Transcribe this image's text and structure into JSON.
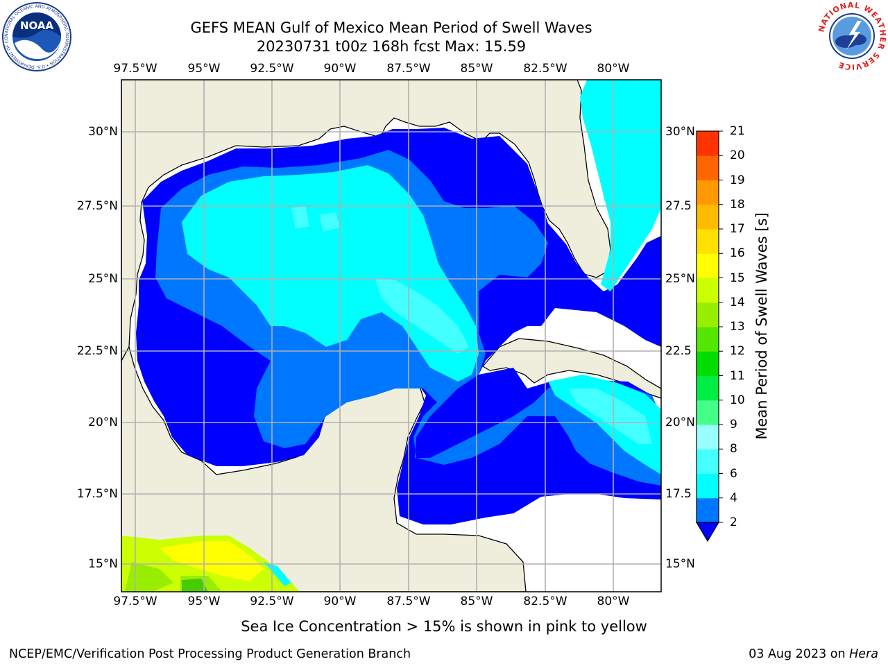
{
  "title": {
    "line1": "GEFS MEAN Gulf of Mexico Mean Period of Swell Waves",
    "line2": "20230731 t00z 168h fcst   Max: 15.59"
  },
  "map": {
    "lon_ticks": [
      "97.5°W",
      "95°W",
      "92.5°W",
      "90°W",
      "87.5°W",
      "85°W",
      "82.5°W",
      "80°W"
    ],
    "lat_ticks_left": [
      "30°N",
      "27.5°N",
      "25°N",
      "22.5°N",
      "20°N",
      "17.5°N",
      "15°N"
    ],
    "lat_ticks_right": [
      "30°N",
      "27.5",
      "25°N",
      "22.5",
      "20°N",
      "17.5",
      "15°N"
    ],
    "land_color": "#efeedd",
    "water_color": "#ffffff"
  },
  "colorbar": {
    "label": "Mean Period of Swell Waves [s]",
    "ticks": [
      "2",
      "4",
      "6",
      "8",
      "9",
      "10",
      "11",
      "12",
      "13",
      "14",
      "15",
      "16",
      "17",
      "18",
      "19",
      "20",
      "21"
    ],
    "colors": [
      "#0000ff",
      "#0077ff",
      "#00ffff",
      "#44ffff",
      "#99ffff",
      "#44ff88",
      "#00ee44",
      "#00dd00",
      "#55e600",
      "#99ee00",
      "#ccff00",
      "#ffff00",
      "#ffe000",
      "#ffbb00",
      "#ff9900",
      "#ff6600",
      "#ff3300",
      "#ff0000"
    ]
  },
  "note": "Sea Ice Concentration > 15% is shown in pink to yellow",
  "footer": {
    "left": "NCEP/EMC/Verification Post Processing Product Generation Branch",
    "date": "03 Aug 2023 on ",
    "machine": "Hera"
  },
  "logos": {
    "noaa": "NOAA",
    "noaa_ring": "NATIONAL OCEANIC AND ATMOSPHERIC ADMINISTRATION • U.S. DEPARTMENT OF COMMERCE •",
    "nws_ring": "NATIONAL WEATHER SERVICE"
  }
}
